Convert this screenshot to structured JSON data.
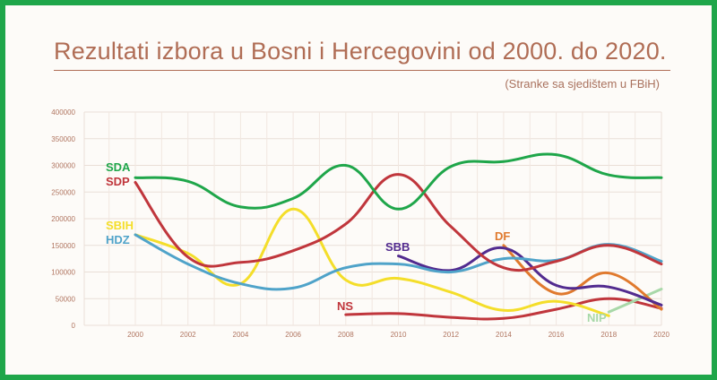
{
  "title": "Rezultati izbora u Bosni i Hercegovini od 2000. do 2020.",
  "subtitle": "(Stranke sa sjedištem u FBiH)",
  "chart_data": {
    "type": "line",
    "title": "Rezultati izbora u Bosni i Hercegovini od 2000. do 2020.",
    "subtitle": "(Stranke sa sjedištem u FBiH)",
    "xlabel": "",
    "ylabel": "",
    "x": [
      2000,
      2002,
      2004,
      2006,
      2008,
      2010,
      2012,
      2014,
      2016,
      2018,
      2020
    ],
    "x_ticks": [
      "2000",
      "2002",
      "2004",
      "2006",
      "2008",
      "2010",
      "2012",
      "2014",
      "2016",
      "2018",
      "2020"
    ],
    "y_ticks": [
      "0",
      "50000",
      "100000",
      "150000",
      "200000",
      "250000",
      "300000",
      "350000",
      "400000"
    ],
    "ylim": [
      0,
      400000
    ],
    "grid": true,
    "series": [
      {
        "name": "SDA",
        "color": "#1fa64a",
        "x": [
          2000,
          2002,
          2004,
          2006,
          2008,
          2010,
          2012,
          2014,
          2016,
          2018,
          2020
        ],
        "values": [
          277000,
          270000,
          222000,
          238000,
          300000,
          218000,
          298000,
          307000,
          320000,
          282000,
          277000
        ]
      },
      {
        "name": "SDP",
        "color": "#c0363c",
        "x": [
          2000,
          2002,
          2004,
          2006,
          2008,
          2010,
          2012,
          2014,
          2016,
          2018,
          2020
        ],
        "values": [
          268000,
          128000,
          118000,
          140000,
          190000,
          283000,
          185000,
          108000,
          120000,
          150000,
          115000
        ]
      },
      {
        "name": "HDZ",
        "color": "#4fa3c9",
        "x": [
          2000,
          2002,
          2004,
          2006,
          2008,
          2010,
          2012,
          2014,
          2016,
          2018,
          2020
        ],
        "values": [
          170000,
          115000,
          78000,
          70000,
          108000,
          115000,
          100000,
          125000,
          122000,
          152000,
          120000
        ]
      },
      {
        "name": "SBIH",
        "color": "#f4de2a",
        "x": [
          2000,
          2002,
          2004,
          2006,
          2008,
          2010,
          2012,
          2014,
          2016,
          2018
        ],
        "values": [
          170000,
          135000,
          78000,
          218000,
          85000,
          88000,
          62000,
          28000,
          45000,
          18000
        ]
      },
      {
        "name": "NS",
        "color": "#c0363c",
        "x": [
          2008,
          2010,
          2012,
          2014,
          2016,
          2018,
          2020
        ],
        "values": [
          20000,
          22000,
          15000,
          13000,
          30000,
          50000,
          32000
        ]
      },
      {
        "name": "SBB",
        "color": "#522b8f",
        "x": [
          2010,
          2012,
          2014,
          2016,
          2018,
          2020
        ],
        "values": [
          130000,
          103000,
          145000,
          75000,
          72000,
          38000
        ]
      },
      {
        "name": "DF",
        "color": "#e07a2e",
        "x": [
          2014,
          2016,
          2018,
          2020
        ],
        "values": [
          150000,
          60000,
          98000,
          30000
        ]
      },
      {
        "name": "NIP",
        "color": "#a8d8a8",
        "x": [
          2018,
          2020
        ],
        "values": [
          25000,
          68000
        ]
      }
    ]
  }
}
